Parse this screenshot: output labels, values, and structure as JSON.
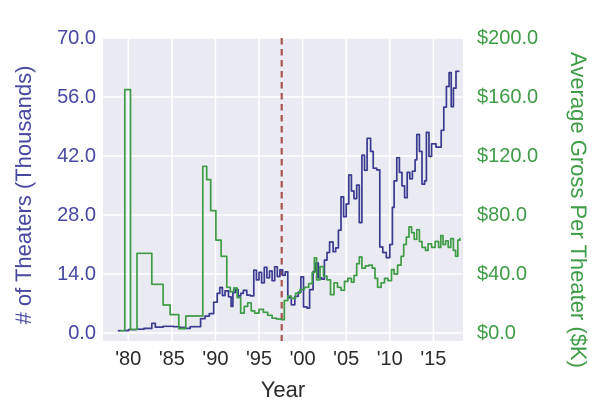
{
  "chart_data": {
    "type": "line",
    "title": "",
    "xlabel": "Year",
    "ylabel_left": "# of Theaters (Thousands)",
    "ylabel_right": "Average Gross Per Theater ($K)",
    "x_tick_values": [
      1980,
      1985,
      1990,
      1995,
      2000,
      2005,
      2010,
      2015
    ],
    "x_tick_labels": [
      "'80",
      "'85",
      "'90",
      "'95",
      "'00",
      "'05",
      "'10",
      "'15"
    ],
    "y_left_tick_values": [
      0,
      14,
      28,
      42,
      56,
      70
    ],
    "y_left_tick_labels": [
      "0.0",
      "14.0",
      "28.0",
      "42.0",
      "56.0",
      "70.0"
    ],
    "y_right_tick_values": [
      0,
      40,
      80,
      120,
      160,
      200
    ],
    "y_right_tick_labels": [
      "$0.0",
      "$40.0",
      "$80.0",
      "$120.0",
      "$160.0",
      "$200.0"
    ],
    "xlim": [
      1977.1,
      2018.4
    ],
    "ylim_left": [
      -1.9,
      70
    ],
    "ylim_right": [
      -5.4,
      200
    ],
    "grid": true,
    "legend": false,
    "plot_bg": "#eaeaf2",
    "grid_color": "#ffffff",
    "tick_text_color": "#2b2b2b",
    "vline": {
      "x": 1997.6,
      "style": "dashed",
      "color": "#aa5450"
    },
    "series": [
      {
        "name": "# of Theaters (Thousands)",
        "axis": "left",
        "color": "#3a3a90",
        "label_color": "#4848a2",
        "step": true,
        "points": [
          [
            1978.8,
            0.55
          ],
          [
            1980.0,
            0.8
          ],
          [
            1980.9,
            0.9
          ],
          [
            1981.8,
            1.1
          ],
          [
            1982.7,
            2.3
          ],
          [
            1983.1,
            1.4
          ],
          [
            1984.0,
            1.6
          ],
          [
            1985.2,
            1.5
          ],
          [
            1985.9,
            1.3
          ],
          [
            1986.5,
            1.1
          ],
          [
            1987.1,
            1.5
          ],
          [
            1988.3,
            3.4
          ],
          [
            1988.8,
            4.0
          ],
          [
            1989.3,
            4.6
          ],
          [
            1989.8,
            7.3
          ],
          [
            1990.2,
            9.4
          ],
          [
            1990.5,
            10.8
          ],
          [
            1990.8,
            8.9
          ],
          [
            1991.1,
            10.0
          ],
          [
            1991.5,
            8.6
          ],
          [
            1991.8,
            6.3
          ],
          [
            1992.0,
            9.6
          ],
          [
            1992.3,
            10.3
          ],
          [
            1992.6,
            8.8
          ],
          [
            1992.9,
            9.4
          ],
          [
            1993.2,
            10.1
          ],
          [
            1993.6,
            9.0
          ],
          [
            1994.0,
            8.8
          ],
          [
            1994.4,
            14.9
          ],
          [
            1994.7,
            12.6
          ],
          [
            1995.0,
            14.4
          ],
          [
            1995.3,
            11.9
          ],
          [
            1995.6,
            15.6
          ],
          [
            1995.9,
            13.1
          ],
          [
            1996.2,
            14.7
          ],
          [
            1996.5,
            12.4
          ],
          [
            1996.8,
            15.7
          ],
          [
            1997.1,
            13.4
          ],
          [
            1997.4,
            15.0
          ],
          [
            1997.7,
            13.7
          ],
          [
            1998.0,
            14.5
          ],
          [
            1998.3,
            8.4
          ],
          [
            1998.7,
            6.7
          ],
          [
            1999.1,
            8.7
          ],
          [
            1999.5,
            9.7
          ],
          [
            1999.8,
            13.3
          ],
          [
            2000.1,
            6.2
          ],
          [
            2000.5,
            5.9
          ],
          [
            2000.8,
            10.3
          ],
          [
            2001.2,
            14.6
          ],
          [
            2001.5,
            16.6
          ],
          [
            2001.8,
            13.1
          ],
          [
            2002.2,
            12.8
          ],
          [
            2002.5,
            17.3
          ],
          [
            2002.8,
            19.1
          ],
          [
            2003.1,
            21.6
          ],
          [
            2003.5,
            19.3
          ],
          [
            2003.8,
            20.2
          ],
          [
            2004.1,
            24.4
          ],
          [
            2004.4,
            32.3
          ],
          [
            2004.7,
            27.6
          ],
          [
            2005.0,
            30.6
          ],
          [
            2005.3,
            37.5
          ],
          [
            2005.6,
            33.7
          ],
          [
            2005.9,
            31.9
          ],
          [
            2006.2,
            35.1
          ],
          [
            2006.5,
            26.2
          ],
          [
            2006.8,
            42.2
          ],
          [
            2007.1,
            38.6
          ],
          [
            2007.4,
            46.2
          ],
          [
            2007.8,
            43.1
          ],
          [
            2008.1,
            39.1
          ],
          [
            2008.5,
            38.7
          ],
          [
            2008.85,
            20.4
          ],
          [
            2009.2,
            19.1
          ],
          [
            2009.6,
            17.9
          ],
          [
            2010.0,
            21.0
          ],
          [
            2010.3,
            29.8
          ],
          [
            2010.5,
            36.1
          ],
          [
            2010.8,
            41.6
          ],
          [
            2011.1,
            38.1
          ],
          [
            2011.4,
            34.9
          ],
          [
            2011.7,
            32.1
          ],
          [
            2012.0,
            38.1
          ],
          [
            2012.3,
            36.6
          ],
          [
            2012.6,
            38.4
          ],
          [
            2012.9,
            41.1
          ],
          [
            2013.1,
            47.1
          ],
          [
            2013.4,
            43.1
          ],
          [
            2013.7,
            35.3
          ],
          [
            2014.0,
            36.1
          ],
          [
            2014.2,
            47.6
          ],
          [
            2014.5,
            41.9
          ],
          [
            2014.8,
            44.9
          ],
          [
            2015.3,
            44.1
          ],
          [
            2015.9,
            48.1
          ],
          [
            2016.2,
            53.6
          ],
          [
            2016.5,
            58.5
          ],
          [
            2016.8,
            61.8
          ],
          [
            2017.05,
            53.7
          ],
          [
            2017.3,
            58.1
          ],
          [
            2017.6,
            62.1
          ],
          [
            2018.0,
            62.1
          ]
        ]
      },
      {
        "name": "Average Gross Per Theater ($K)",
        "axis": "right",
        "color": "#3f9c46",
        "label_color": "#3f9c46",
        "step": true,
        "points": [
          [
            1979.1,
            1.5
          ],
          [
            1979.6,
            165
          ],
          [
            1980.25,
            2.5
          ],
          [
            1981.0,
            54
          ],
          [
            1982.7,
            33
          ],
          [
            1984.0,
            19
          ],
          [
            1984.8,
            12.5
          ],
          [
            1985.8,
            3.0
          ],
          [
            1986.6,
            11.5
          ],
          [
            1988.55,
            113
          ],
          [
            1989.0,
            104
          ],
          [
            1989.45,
            83
          ],
          [
            1990.05,
            63
          ],
          [
            1990.65,
            52
          ],
          [
            1991.3,
            31
          ],
          [
            1991.7,
            28
          ],
          [
            1992.1,
            30.5
          ],
          [
            1992.5,
            24
          ],
          [
            1992.9,
            13.5
          ],
          [
            1993.3,
            18
          ],
          [
            1993.7,
            20.5
          ],
          [
            1994.1,
            15
          ],
          [
            1994.5,
            13.5
          ],
          [
            1995.0,
            16
          ],
          [
            1995.5,
            14
          ],
          [
            1996.0,
            12
          ],
          [
            1996.5,
            10
          ],
          [
            1997.0,
            9.5
          ],
          [
            1997.55,
            9
          ],
          [
            1997.9,
            22
          ],
          [
            1998.3,
            25
          ],
          [
            1998.7,
            23.5
          ],
          [
            1999.2,
            27
          ],
          [
            1999.7,
            29.5
          ],
          [
            2000.2,
            31
          ],
          [
            2000.7,
            33.5
          ],
          [
            2001.1,
            41
          ],
          [
            2001.35,
            51
          ],
          [
            2001.6,
            36
          ],
          [
            2002.0,
            45
          ],
          [
            2002.4,
            38.5
          ],
          [
            2002.8,
            36
          ],
          [
            2003.2,
            26
          ],
          [
            2003.6,
            34
          ],
          [
            2004.0,
            31
          ],
          [
            2004.4,
            29
          ],
          [
            2004.8,
            35
          ],
          [
            2005.2,
            37
          ],
          [
            2005.6,
            34.5
          ],
          [
            2005.9,
            39
          ],
          [
            2006.2,
            47
          ],
          [
            2006.5,
            51.5
          ],
          [
            2006.8,
            44
          ],
          [
            2007.2,
            45.5
          ],
          [
            2007.6,
            46
          ],
          [
            2008.0,
            44
          ],
          [
            2008.3,
            37
          ],
          [
            2008.6,
            31
          ],
          [
            2009.0,
            34
          ],
          [
            2009.4,
            37
          ],
          [
            2009.8,
            35.5
          ],
          [
            2010.2,
            43
          ],
          [
            2010.5,
            40
          ],
          [
            2010.9,
            46
          ],
          [
            2011.3,
            52
          ],
          [
            2011.6,
            60
          ],
          [
            2011.9,
            65
          ],
          [
            2012.2,
            72
          ],
          [
            2012.5,
            68
          ],
          [
            2012.8,
            63.5
          ],
          [
            2013.1,
            70
          ],
          [
            2013.4,
            62
          ],
          [
            2013.7,
            58
          ],
          [
            2014.1,
            56
          ],
          [
            2014.4,
            60.5
          ],
          [
            2014.8,
            58
          ],
          [
            2015.2,
            62
          ],
          [
            2015.6,
            58
          ],
          [
            2015.85,
            66
          ],
          [
            2016.1,
            60
          ],
          [
            2016.4,
            62.5
          ],
          [
            2016.7,
            58
          ],
          [
            2017.0,
            64
          ],
          [
            2017.3,
            56
          ],
          [
            2017.55,
            52
          ],
          [
            2017.8,
            63
          ],
          [
            2018.05,
            64.5
          ]
        ]
      }
    ]
  }
}
